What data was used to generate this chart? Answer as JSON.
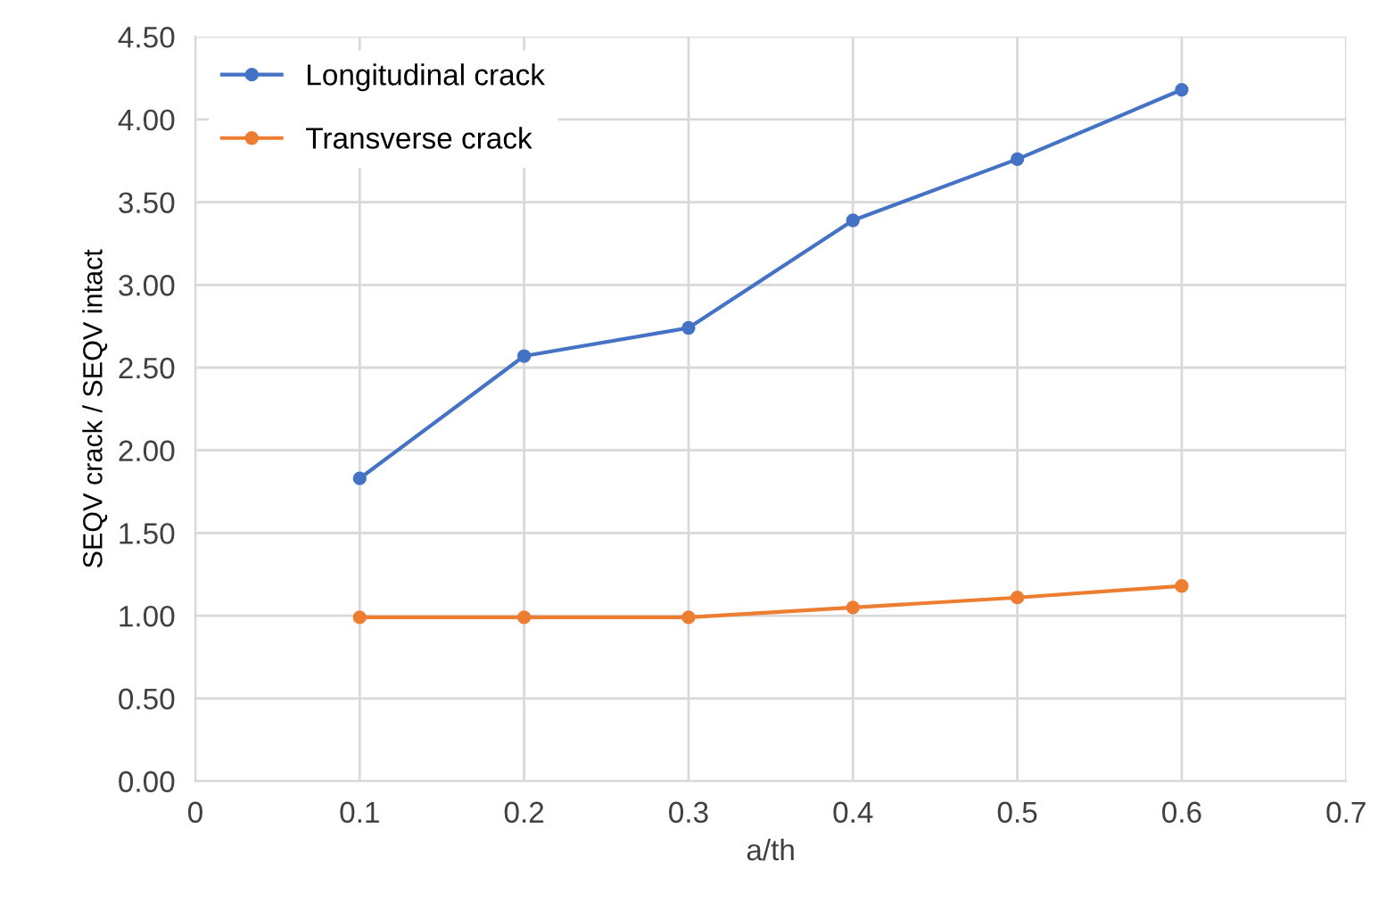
{
  "chart_data": {
    "type": "line",
    "xlabel": "a/th",
    "ylabel": "SEQV crack / SEQV intact",
    "x": [
      0.1,
      0.2,
      0.3,
      0.4,
      0.5,
      0.6
    ],
    "series": [
      {
        "name": "Longitudinal crack",
        "color": "#4472c4",
        "values": [
          1.83,
          2.57,
          2.74,
          3.39,
          3.76,
          4.18
        ]
      },
      {
        "name": "Transverse crack",
        "color": "#ed7d31",
        "values": [
          0.99,
          0.99,
          0.99,
          1.05,
          1.11,
          1.18
        ]
      }
    ],
    "xlim": [
      0,
      0.7
    ],
    "xticks": [
      0,
      0.1,
      0.2,
      0.3,
      0.4,
      0.5,
      0.6,
      0.7
    ],
    "ylim": [
      0,
      4.5
    ],
    "yticks": [
      {
        "value": 0,
        "label": "0.00"
      },
      {
        "value": 0.5,
        "label": "0.50"
      },
      {
        "value": 1,
        "label": "1.00"
      },
      {
        "value": 1.5,
        "label": "1.50"
      },
      {
        "value": 2,
        "label": "2.00"
      },
      {
        "value": 2.5,
        "label": "2.50"
      },
      {
        "value": 3,
        "label": "3.00"
      },
      {
        "value": 3.5,
        "label": "3.50"
      },
      {
        "value": 4,
        "label": "4.00"
      },
      {
        "value": 4.5,
        "label": "4.50"
      }
    ],
    "grid": true,
    "legend": "top left",
    "marker": "circle",
    "line_style": "solid"
  }
}
